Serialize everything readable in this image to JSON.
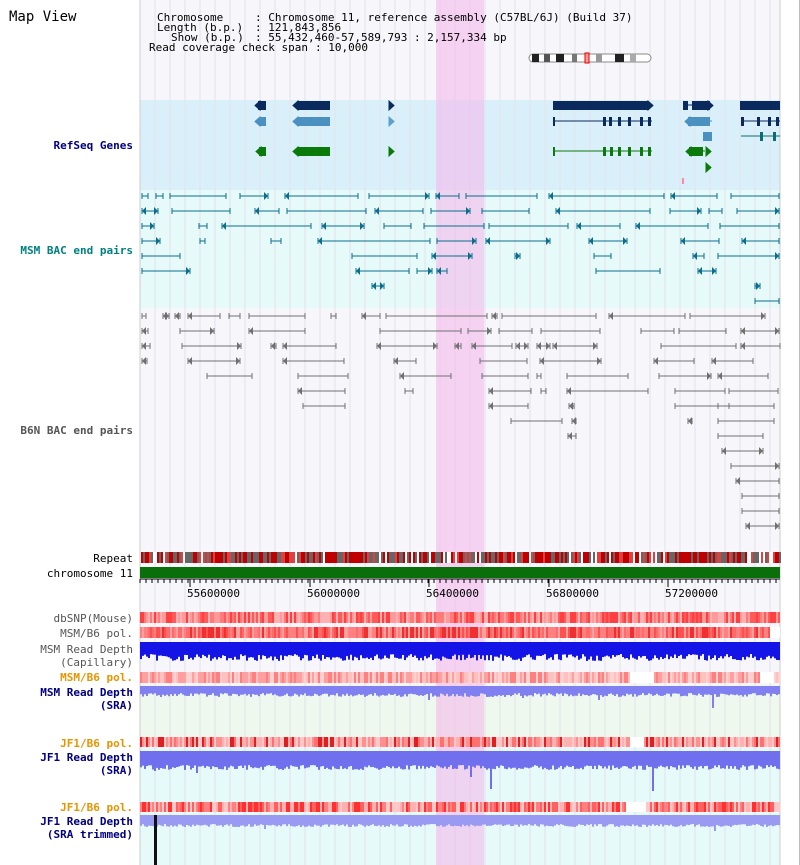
{
  "panel": {
    "title": "Map View"
  },
  "header": {
    "chromosome_key": "Chromosome",
    "chromosome_val": ": Chromosome 11, reference assembly (C57BL/6J) (Build 37)",
    "length_key": "Length (b.p.)",
    "length_val": ": 121,843,856",
    "show_key": "Show (b.p.)",
    "show_val": ": 55,432,460-57,589,793 : 2,157,334 bp",
    "coverage_key": "Read coverage check span",
    "coverage_val": ": 10,000"
  },
  "tracks": {
    "refseq": "RefSeq Genes",
    "msm_bac": "MSM BAC end pairs",
    "b6n_bac": "B6N BAC end pairs",
    "repeat": "Repeat",
    "chromosome": "chromosome 11",
    "dbsnp": "dbSNP(Mouse)",
    "msm_pol": "MSM/B6 pol.",
    "msm_depth_cap_1": "MSM Read Depth",
    "msm_depth_cap_2": "(Capillary)",
    "msm_pol2": "MSM/B6 pol.",
    "msm_depth_sra_1": "MSM Read Depth",
    "msm_depth_sra_2": "(SRA)",
    "jf1_pol": "JF1/B6 pol.",
    "jf1_depth_1": "JF1 Read Depth",
    "jf1_depth_2": "(SRA)",
    "jf1_pol2": "JF1/B6 pol.",
    "jf1_trim_1": "JF1 Read Depth",
    "jf1_trim_2": "(SRA trimmed)"
  },
  "axis": {
    "ticks": [
      "55600000",
      "56000000",
      "56400000",
      "56800000",
      "57200000"
    ]
  },
  "colors": {
    "highlight": "#f8d0f0",
    "refseq_bg": "#d8f0fa",
    "msm_bg": "#e8fafa",
    "gene_navy": "#0a2a5e",
    "gene_blue": "#4a90c0",
    "gene_green": "#0a7a0a",
    "chromosome_bar": "#0a6e0a",
    "depth_blue": "#1414e6",
    "depth_light": "#8080f0"
  }
}
